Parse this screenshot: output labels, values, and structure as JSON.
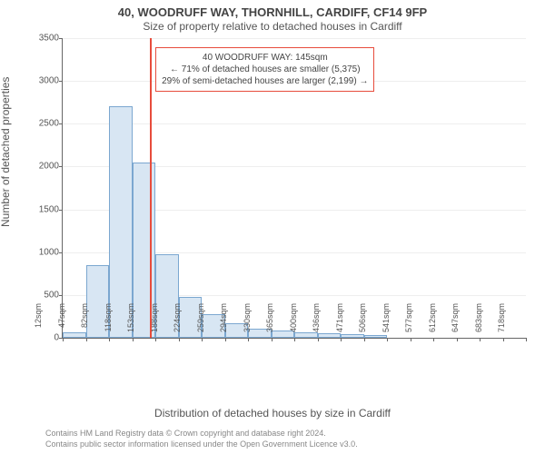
{
  "chart": {
    "type": "histogram",
    "title_line1": "40, WOODRUFF WAY, THORNHILL, CARDIFF, CF14 9FP",
    "title_line2": "Size of property relative to detached houses in Cardiff",
    "y_label": "Number of detached properties",
    "x_label": "Distribution of detached houses by size in Cardiff",
    "footer_line1": "Contains HM Land Registry data © Crown copyright and database right 2024.",
    "footer_line2": "Contains public sector information licensed under the Open Government Licence v3.0.",
    "background_color": "#ffffff",
    "bar_fill": "#d8e6f3",
    "bar_border": "#7ba7d0",
    "grid_color": "#eeeeee",
    "axis_color": "#666666",
    "marker_color": "#e74c3c",
    "ylim": [
      0,
      3500
    ],
    "ytick_step": 500,
    "yticks": [
      "0",
      "500",
      "1000",
      "1500",
      "2000",
      "2500",
      "3000",
      "3500"
    ],
    "xticks": [
      "12sqm",
      "47sqm",
      "82sqm",
      "118sqm",
      "153sqm",
      "188sqm",
      "224sqm",
      "259sqm",
      "294sqm",
      "330sqm",
      "365sqm",
      "400sqm",
      "436sqm",
      "471sqm",
      "506sqm",
      "541sqm",
      "577sqm",
      "612sqm",
      "647sqm",
      "683sqm",
      "718sqm"
    ],
    "values": [
      60,
      850,
      2700,
      2050,
      980,
      480,
      280,
      170,
      110,
      80,
      60,
      50,
      40,
      35,
      0,
      0,
      0,
      0,
      0,
      0
    ],
    "marker_bin_index": 3,
    "marker_position_in_bin": 0.77,
    "callout": {
      "line1": "40 WOODRUFF WAY: 145sqm",
      "line2": "← 71% of detached houses are smaller (5,375)",
      "line3": "29% of semi-detached houses are larger (2,199) →"
    }
  }
}
